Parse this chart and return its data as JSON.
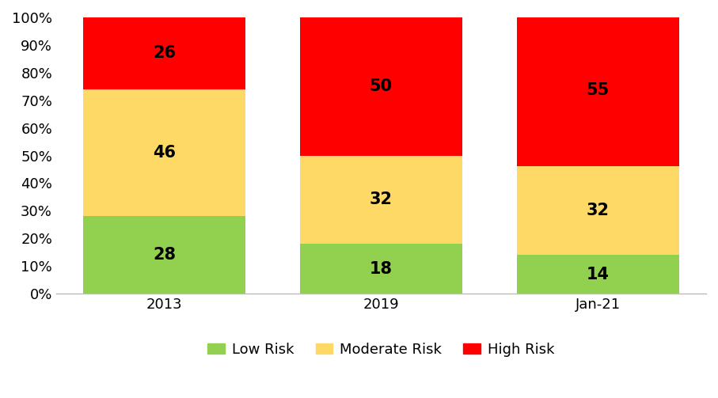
{
  "categories": [
    "2013",
    "2019",
    "Jan-21"
  ],
  "low_risk": [
    28,
    18,
    14
  ],
  "moderate_risk": [
    46,
    32,
    32
  ],
  "high_risk": [
    26,
    50,
    55
  ],
  "low_risk_color": "#92D050",
  "moderate_risk_color": "#FFD966",
  "high_risk_color": "#FF0000",
  "low_risk_label": "Low Risk",
  "moderate_risk_label": "Moderate Risk",
  "high_risk_label": "High Risk",
  "ylabel_ticks": [
    "0%",
    "10%",
    "20%",
    "30%",
    "40%",
    "50%",
    "60%",
    "70%",
    "80%",
    "90%",
    "100%"
  ],
  "bar_width": 0.75,
  "label_fontsize": 15,
  "tick_fontsize": 13,
  "legend_fontsize": 13,
  "background_color": "#FFFFFF"
}
